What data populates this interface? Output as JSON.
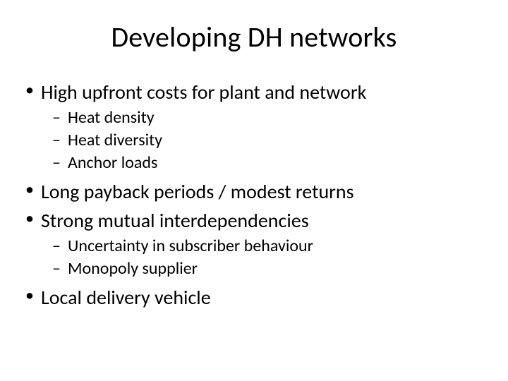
{
  "slide": {
    "title": "Developing DH networks",
    "title_fontsize": 40,
    "background_color": "#ffffff",
    "text_color": "#000000",
    "bullets": [
      {
        "text": "High upfront costs for plant and network",
        "sub": [
          "Heat density",
          "Heat diversity",
          "Anchor loads"
        ]
      },
      {
        "text": "Long payback periods / modest returns",
        "sub": []
      },
      {
        "text": "Strong mutual interdependencies",
        "sub": [
          "Uncertainty in subscriber behaviour",
          "Monopoly supplier"
        ]
      },
      {
        "text": "Local delivery vehicle",
        "sub": []
      }
    ],
    "lvl1_fontsize": 28,
    "lvl2_fontsize": 24
  }
}
